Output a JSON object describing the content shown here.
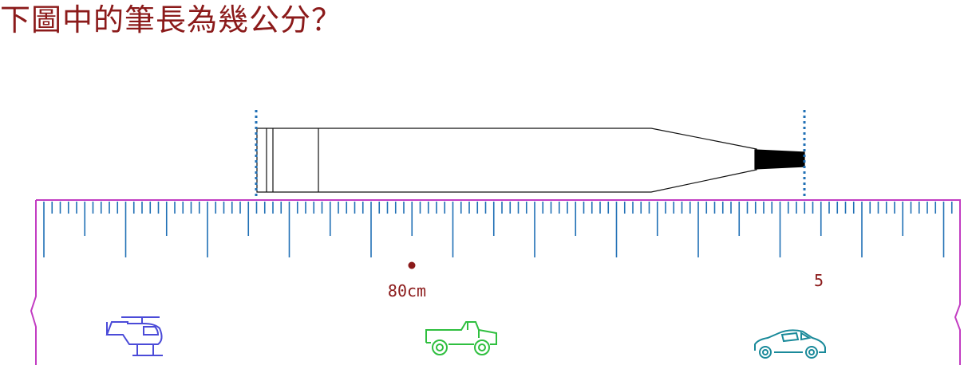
{
  "question": {
    "text": "下圖中的筆長為幾公分？"
  },
  "ruler": {
    "label_cm": "80cm",
    "label_number": "5",
    "icons": [
      "helicopter-icon",
      "jeep-icon",
      "car-icon"
    ]
  },
  "colors": {
    "question_text": "#8b1a1a",
    "ruler_border": "#c23cc2",
    "ticks": "#1f6fb5",
    "guide_lines": "#1f6fb5",
    "ruler_text": "#8b1a1a",
    "helicopter": "#4b4bd8",
    "jeep": "#2fbf3f",
    "car": "#1a8a9a"
  }
}
